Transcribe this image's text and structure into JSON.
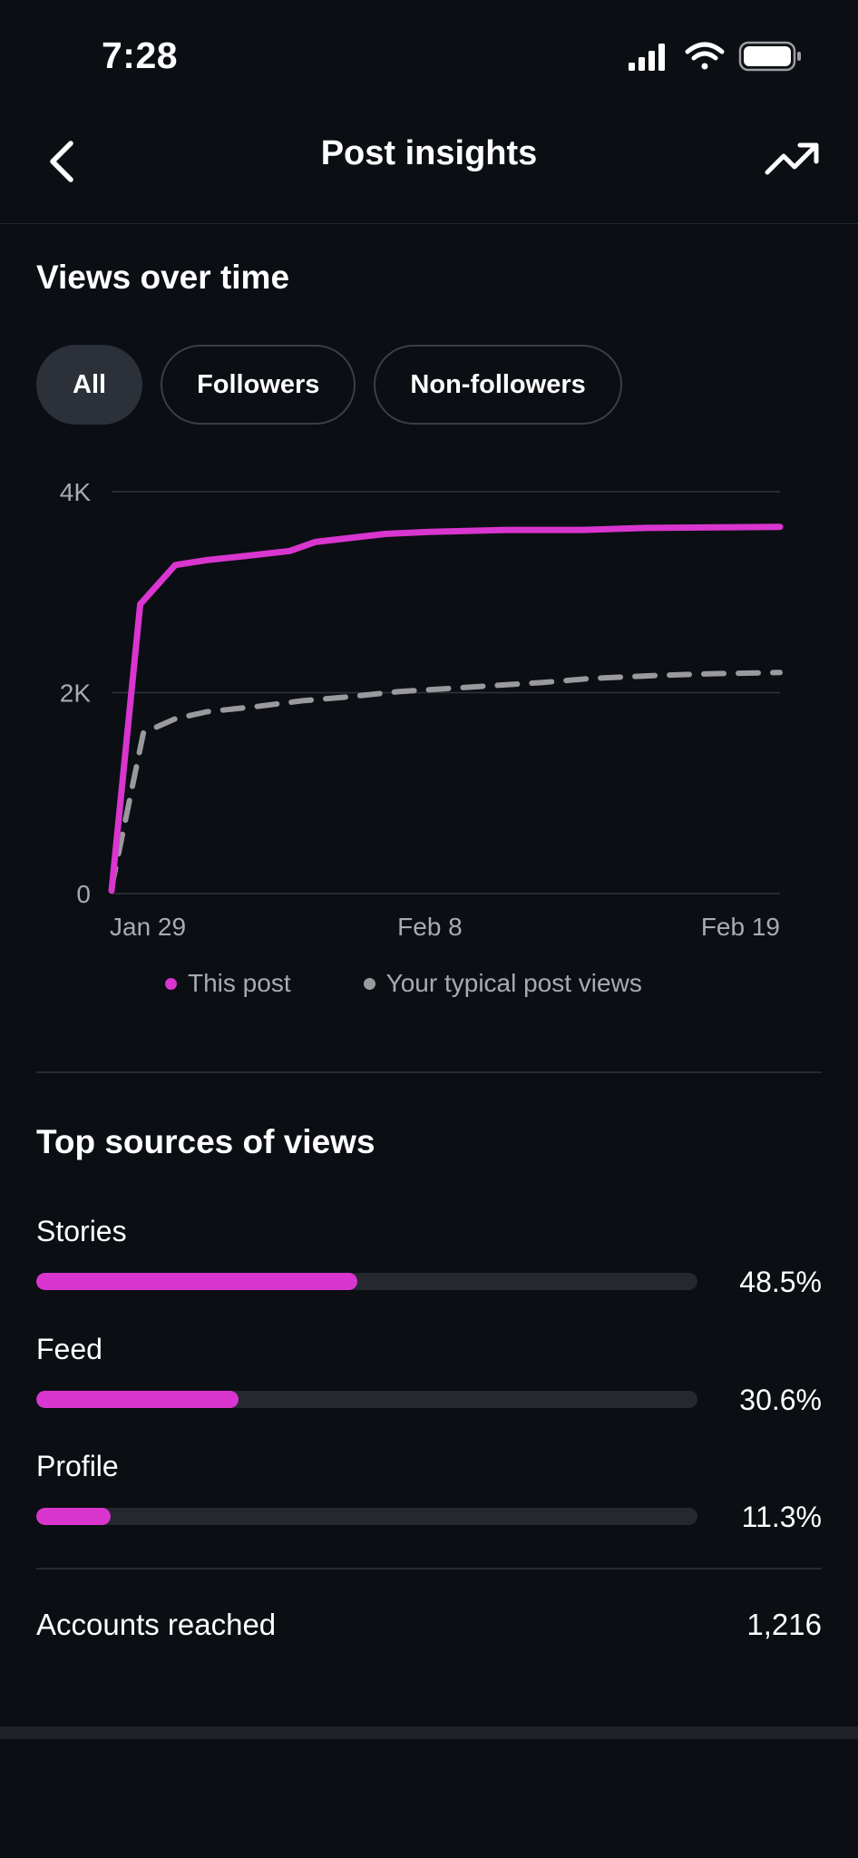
{
  "status_bar": {
    "time": "7:28",
    "icons": [
      "signal-icon",
      "wifi-icon",
      "battery-icon"
    ]
  },
  "header": {
    "title": "Post insights",
    "back_icon": "chevron-left-icon",
    "trend_icon": "trending-up-icon"
  },
  "views_section": {
    "title": "Views over time",
    "filters": [
      {
        "label": "All",
        "selected": true
      },
      {
        "label": "Followers",
        "selected": false
      },
      {
        "label": "Non-followers",
        "selected": false
      }
    ]
  },
  "chart_data": {
    "type": "line",
    "title": "Views over time",
    "xlabel": "",
    "ylabel": "",
    "ylim": [
      0,
      4000
    ],
    "y_ticks": [
      {
        "value": 0,
        "label": "0"
      },
      {
        "value": 2000,
        "label": "2K"
      },
      {
        "value": 4000,
        "label": "4K"
      }
    ],
    "x_ticks": [
      {
        "value": 0,
        "label": "Jan 29"
      },
      {
        "value": 10,
        "label": "Feb 8"
      },
      {
        "value": 21,
        "label": "Feb 19"
      }
    ],
    "xlim": [
      0,
      21
    ],
    "grid": true,
    "legend_placement": "bottom",
    "series": [
      {
        "name": "This post",
        "color": "#d935cf",
        "style": "solid",
        "x": [
          0,
          0.9,
          2,
          3,
          4.2,
          5.6,
          6.4,
          8.6,
          10,
          12.4,
          14.8,
          16.8,
          21
        ],
        "y": [
          30,
          2880,
          3270,
          3320,
          3360,
          3410,
          3500,
          3580,
          3600,
          3620,
          3620,
          3640,
          3650
        ]
      },
      {
        "name": "Your typical post views",
        "color": "#9a9a9e",
        "style": "dashed",
        "x": [
          0,
          1,
          2,
          3,
          4.5,
          6,
          7.5,
          9,
          10.5,
          12,
          13.5,
          15,
          17,
          19,
          21
        ],
        "y": [
          60,
          1600,
          1740,
          1810,
          1860,
          1920,
          1960,
          2010,
          2040,
          2070,
          2100,
          2140,
          2170,
          2190,
          2200
        ]
      }
    ]
  },
  "sources_section": {
    "title": "Top sources of views",
    "items": [
      {
        "label": "Stories",
        "value": "48.5%",
        "fraction": 0.485
      },
      {
        "label": "Feed",
        "value": "30.6%",
        "fraction": 0.306
      },
      {
        "label": "Profile",
        "value": "11.3%",
        "fraction": 0.113
      }
    ]
  },
  "accounts_reached": {
    "label": "Accounts reached",
    "value": "1,216"
  }
}
